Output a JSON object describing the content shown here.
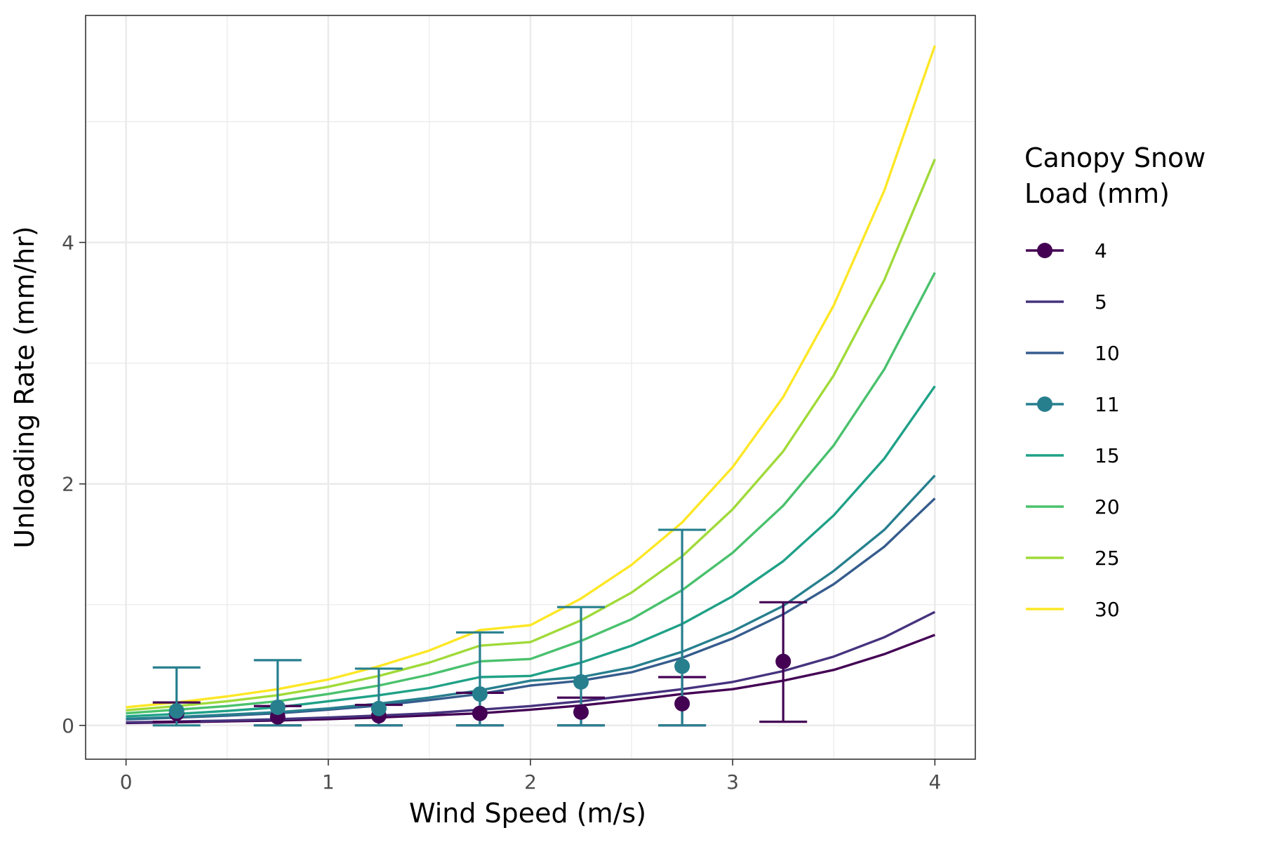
{
  "chart_data": {
    "type": "line",
    "xlabel": "Wind Speed (m/s)",
    "ylabel": "Unloading Rate (mm/hr)",
    "xlim": [
      -0.2,
      4.2
    ],
    "ylim": [
      -0.28,
      5.88
    ],
    "x_ticks": [
      0,
      1,
      2,
      3,
      4
    ],
    "x_tick_labels": [
      "0",
      "1",
      "2",
      "3",
      "4"
    ],
    "y_ticks": [
      0,
      2,
      4
    ],
    "y_tick_labels": [
      "0",
      "2",
      "4"
    ],
    "grid": true,
    "legend": {
      "title_lines": [
        "Canopy Snow",
        "Load (mm)"
      ],
      "placement": "right"
    },
    "model_x": [
      0,
      0.25,
      0.5,
      0.75,
      1,
      1.25,
      1.5,
      1.75,
      2,
      2.25,
      2.5,
      2.75,
      3,
      3.25,
      3.5,
      3.75,
      4
    ],
    "series": [
      {
        "name": "4",
        "color": "#440154",
        "kind": "line+points",
        "values": [
          0.02,
          0.026,
          0.033,
          0.041,
          0.052,
          0.066,
          0.083,
          0.1,
          0.13,
          0.165,
          0.21,
          0.26,
          0.3,
          0.37,
          0.46,
          0.59,
          0.75
        ]
      },
      {
        "name": "5",
        "color": "#46337E",
        "kind": "line",
        "values": [
          0.025,
          0.032,
          0.04,
          0.051,
          0.065,
          0.082,
          0.1,
          0.13,
          0.16,
          0.2,
          0.25,
          0.3,
          0.36,
          0.45,
          0.57,
          0.73,
          0.94
        ]
      },
      {
        "name": "10",
        "color": "#365C8D",
        "kind": "line",
        "values": [
          0.05,
          0.064,
          0.081,
          0.1,
          0.13,
          0.164,
          0.21,
          0.26,
          0.33,
          0.37,
          0.44,
          0.56,
          0.72,
          0.92,
          1.17,
          1.48,
          1.88
        ]
      },
      {
        "name": "11",
        "color": "#277F8E",
        "kind": "line+points",
        "values": [
          0.055,
          0.07,
          0.089,
          0.11,
          0.14,
          0.18,
          0.23,
          0.29,
          0.37,
          0.4,
          0.48,
          0.61,
          0.78,
          0.99,
          1.28,
          1.62,
          2.07
        ]
      },
      {
        "name": "15",
        "color": "#1FA187",
        "kind": "line",
        "values": [
          0.075,
          0.095,
          0.12,
          0.15,
          0.2,
          0.25,
          0.31,
          0.4,
          0.41,
          0.52,
          0.66,
          0.84,
          1.07,
          1.36,
          1.74,
          2.21,
          2.81
        ]
      },
      {
        "name": "20",
        "color": "#4AC16D",
        "kind": "line",
        "values": [
          0.1,
          0.13,
          0.16,
          0.2,
          0.26,
          0.33,
          0.42,
          0.53,
          0.55,
          0.7,
          0.88,
          1.12,
          1.43,
          1.82,
          2.32,
          2.95,
          3.75
        ]
      },
      {
        "name": "25",
        "color": "#A0DA39",
        "kind": "line",
        "values": [
          0.125,
          0.16,
          0.2,
          0.25,
          0.32,
          0.41,
          0.52,
          0.66,
          0.69,
          0.87,
          1.1,
          1.4,
          1.79,
          2.27,
          2.9,
          3.69,
          4.69
        ]
      },
      {
        "name": "30",
        "color": "#FDE725",
        "kind": "line",
        "values": [
          0.15,
          0.19,
          0.24,
          0.3,
          0.38,
          0.49,
          0.62,
          0.79,
          0.83,
          1.05,
          1.33,
          1.68,
          2.14,
          2.72,
          3.48,
          4.43,
          5.63
        ]
      }
    ],
    "observations": [
      {
        "series": "4",
        "color": "#440154",
        "x": [
          0.25,
          0.75,
          1.25,
          1.75,
          2.25,
          2.75,
          3.25
        ],
        "y": [
          0.1,
          0.07,
          0.08,
          0.1,
          0.11,
          0.18,
          0.53
        ],
        "lower": [
          0.03,
          0.0,
          0.0,
          0.0,
          0.0,
          0.0,
          0.03
        ],
        "upper": [
          0.19,
          0.16,
          0.17,
          0.27,
          0.23,
          0.4,
          1.02
        ]
      },
      {
        "series": "11",
        "color": "#277F8E",
        "x": [
          0.25,
          0.75,
          1.25,
          1.75,
          2.25,
          2.75
        ],
        "y": [
          0.12,
          0.15,
          0.14,
          0.26,
          0.36,
          0.49
        ],
        "lower": [
          0.0,
          0.0,
          0.0,
          0.0,
          0.0,
          0.0
        ],
        "upper": [
          0.48,
          0.54,
          0.47,
          0.77,
          0.98,
          1.62
        ]
      }
    ]
  }
}
